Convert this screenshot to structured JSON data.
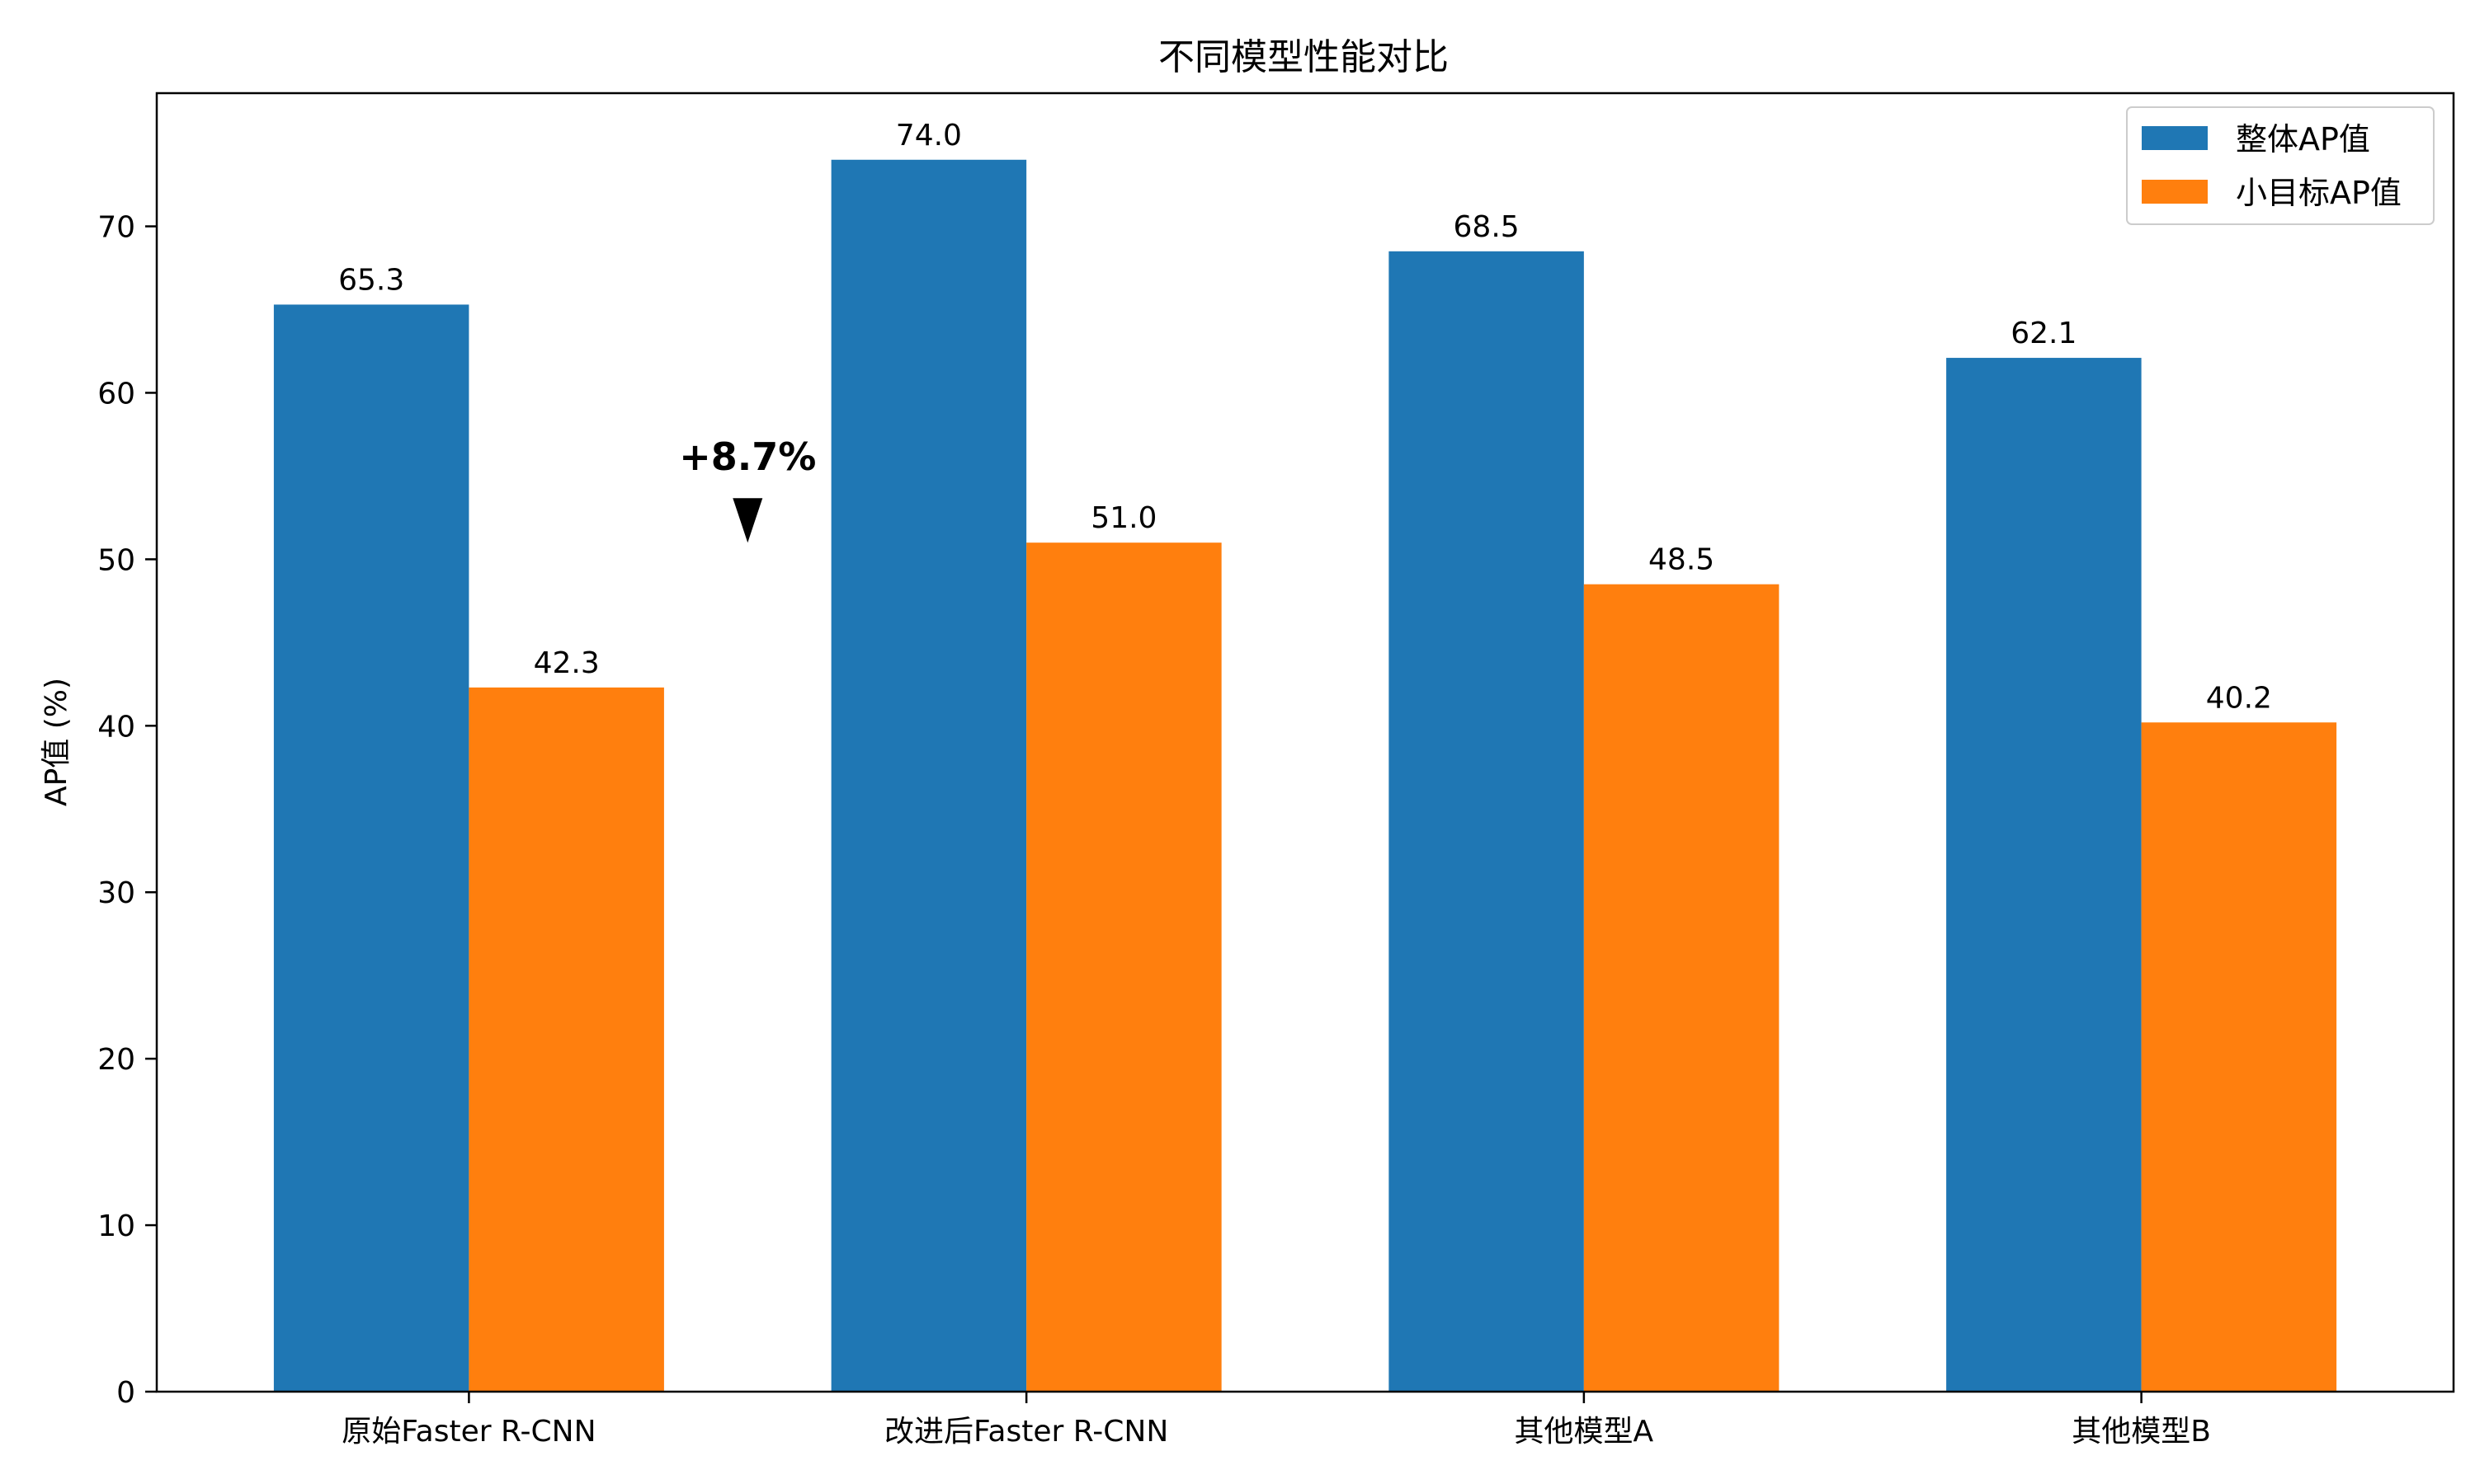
{
  "chart_data": {
    "type": "bar",
    "title": "不同模型性能对比",
    "xlabel": "",
    "ylabel": "AP值 (%)",
    "ylim": [
      0,
      78
    ],
    "yticks": [
      0,
      10,
      20,
      30,
      40,
      50,
      60,
      70
    ],
    "categories": [
      "原始Faster R-CNN",
      "改进后Faster R-CNN",
      "其他模型A",
      "其他模型B"
    ],
    "series": [
      {
        "name": "整体AP值",
        "color": "#1f77b4",
        "values": [
          65.3,
          74.0,
          68.5,
          62.1
        ],
        "labels": [
          "65.3",
          "74.0",
          "68.5",
          "62.1"
        ]
      },
      {
        "name": "小目标AP值",
        "color": "#ff7f0e",
        "values": [
          42.3,
          51.0,
          48.5,
          40.2
        ],
        "labels": [
          "42.3",
          "51.0",
          "48.5",
          "40.2"
        ]
      }
    ],
    "legend_position": "top-right",
    "grid": false,
    "annotation": {
      "text": "+8.7%",
      "arrow_tip_y": 51.0
    }
  }
}
